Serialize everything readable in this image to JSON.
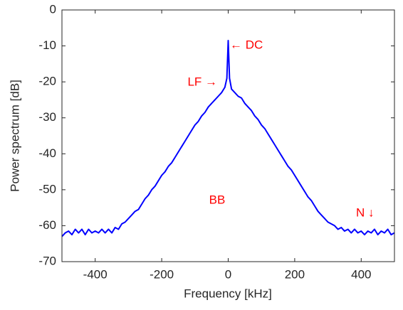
{
  "chart_data": {
    "type": "line",
    "x_label": "Frequency [kHz]",
    "y_label": "Power spectrum [dB]",
    "x": [
      -500,
      -490,
      -480,
      -470,
      -460,
      -450,
      -440,
      -430,
      -420,
      -410,
      -400,
      -390,
      -380,
      -370,
      -360,
      -350,
      -340,
      -330,
      -320,
      -310,
      -300,
      -290,
      -280,
      -270,
      -260,
      -250,
      -240,
      -230,
      -220,
      -210,
      -200,
      -190,
      -180,
      -170,
      -160,
      -150,
      -140,
      -130,
      -120,
      -110,
      -100,
      -90,
      -80,
      -70,
      -60,
      -50,
      -40,
      -30,
      -20,
      -10,
      -4,
      0,
      4,
      10,
      20,
      30,
      40,
      50,
      60,
      70,
      80,
      90,
      100,
      110,
      120,
      130,
      140,
      150,
      160,
      170,
      180,
      190,
      200,
      210,
      220,
      230,
      240,
      250,
      260,
      270,
      280,
      290,
      300,
      310,
      320,
      330,
      340,
      350,
      360,
      370,
      380,
      390,
      400,
      410,
      420,
      430,
      440,
      450,
      460,
      470,
      480,
      490,
      500
    ],
    "series": [
      {
        "name": "Power spectrum",
        "color": "#0000ff",
        "values": [
          -63,
          -62,
          -61.5,
          -62.5,
          -61,
          -62,
          -61,
          -62.5,
          -61,
          -62,
          -61.5,
          -62,
          -61,
          -62,
          -61,
          -62,
          -60.5,
          -61,
          -59.5,
          -59,
          -58,
          -57,
          -56,
          -55.5,
          -54,
          -52.5,
          -51.5,
          -50,
          -49,
          -47.5,
          -46,
          -45,
          -43.5,
          -42.5,
          -41,
          -39.5,
          -38,
          -36.5,
          -35,
          -33.5,
          -32,
          -31,
          -29.5,
          -28.5,
          -27,
          -26,
          -25,
          -24,
          -23,
          -21.5,
          -19,
          -8.5,
          -19,
          -22,
          -23,
          -24,
          -24.5,
          -26,
          -27,
          -28,
          -29.5,
          -30.5,
          -32,
          -33,
          -34.5,
          -36,
          -37.5,
          -39,
          -40.5,
          -42,
          -43.5,
          -44.5,
          -46,
          -47.5,
          -49,
          -50.5,
          -52,
          -53,
          -54.5,
          -56,
          -57,
          -58,
          -59,
          -59.5,
          -60,
          -61,
          -60.5,
          -61.5,
          -61,
          -62,
          -61,
          -62,
          -61.5,
          -62.5,
          -61.5,
          -62,
          -61,
          -62.5,
          -61.5,
          -62,
          -61,
          -62.5,
          -62
        ]
      }
    ],
    "xlim": [
      -500,
      500
    ],
    "xticks": [
      -400,
      -200,
      0,
      200,
      400
    ],
    "ylim": [
      -70,
      0
    ],
    "yticks": [
      -70,
      -60,
      -50,
      -40,
      -30,
      -20,
      -10,
      0
    ],
    "grid": false,
    "annotations": [
      "← DC",
      "LF →",
      "BB",
      "N ↓"
    ]
  }
}
